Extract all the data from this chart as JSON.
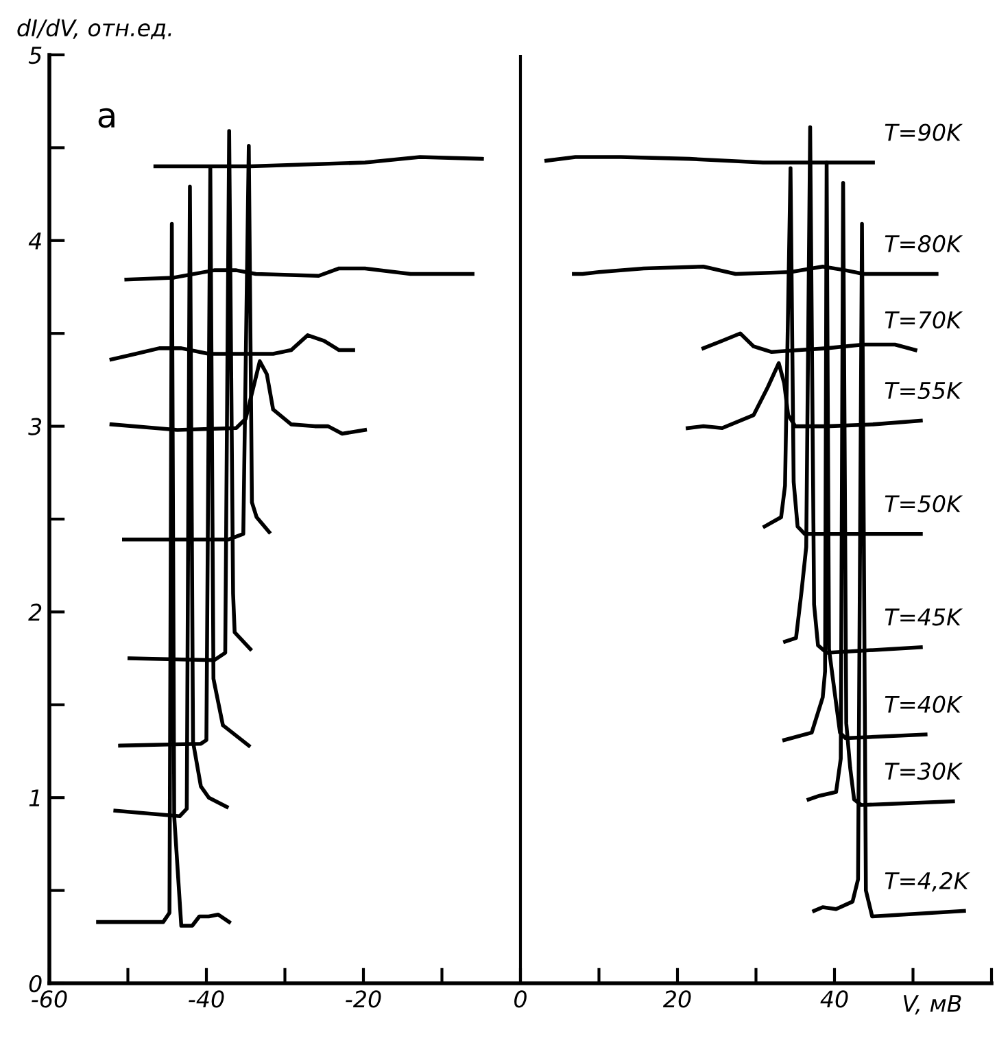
{
  "chart_data": {
    "type": "line",
    "xlabel": "V, мВ",
    "ylabel": "dI/dV, отн.ед.",
    "annotations": [
      "а"
    ],
    "xlim": [
      -60,
      60
    ],
    "ylim": [
      0,
      5
    ],
    "xticks": [
      -60,
      {
        "value": -50,
        "label": null
      },
      -40,
      {
        "value": -30,
        "label": null
      },
      -20,
      {
        "value": -10,
        "label": null
      },
      0,
      {
        "value": 10,
        "label": null
      },
      20,
      {
        "value": 30,
        "label": null
      },
      40,
      {
        "value": 50,
        "label": null
      },
      {
        "value": 60,
        "label": null
      }
    ],
    "yticks": [
      0,
      {
        "value": 0.5,
        "label": null
      },
      1,
      {
        "value": 1.5,
        "label": null
      },
      2,
      {
        "value": 2.5,
        "label": null
      },
      3,
      {
        "value": 3.5,
        "label": null
      },
      4,
      {
        "value": 4.5,
        "label": null
      },
      5
    ],
    "ref_lines": [
      {
        "axis": "x",
        "value": 0,
        "color": "#000000"
      }
    ],
    "grid": false,
    "legend": false,
    "marker": "none",
    "line_style": "solid",
    "series": [
      {
        "name": "T=90K",
        "color": "#000000",
        "x": [
          -46.5,
          -34.4,
          -19.8,
          -12.8,
          -4.9,
          0,
          3.3,
          7.0,
          12.8,
          21.5,
          30.9,
          44.9
        ],
        "values": [
          4.4,
          4.4,
          4.42,
          4.45,
          4.44,
          null,
          4.43,
          4.45,
          4.45,
          4.44,
          4.42,
          4.42
        ]
      },
      {
        "name": "T=80K",
        "color": "#000000",
        "x": [
          -50.2,
          -44.2,
          -39.0,
          -36.2,
          -33.7,
          -25.7,
          -23.1,
          -19.8,
          -14.0,
          -6.1,
          0,
          6.8,
          7.9,
          10.0,
          15.7,
          23.3,
          27.4,
          34.4,
          38.5,
          41.4,
          43.7,
          53.0
        ],
        "values": [
          3.79,
          3.8,
          3.84,
          3.84,
          3.82,
          3.81,
          3.85,
          3.85,
          3.82,
          3.82,
          null,
          3.82,
          3.82,
          3.83,
          3.85,
          3.86,
          3.82,
          3.83,
          3.86,
          3.84,
          3.82,
          3.82
        ]
      },
      {
        "name": "T=70K",
        "color": "#000000",
        "x": [
          -52.1,
          -49.0,
          -46.0,
          -43.2,
          -39.7,
          -35.5,
          -31.5,
          -29.2,
          -27.1,
          -25.0,
          -23.1,
          -21.3,
          0,
          23.3,
          25.7,
          28.0,
          29.7,
          32.0,
          35.5,
          39.0,
          43.7,
          47.7,
          50.3
        ],
        "values": [
          3.36,
          3.39,
          3.42,
          3.42,
          3.39,
          3.39,
          3.39,
          3.41,
          3.49,
          3.46,
          3.41,
          3.41,
          null,
          3.42,
          3.46,
          3.5,
          3.43,
          3.4,
          3.41,
          3.42,
          3.44,
          3.44,
          3.41
        ]
      },
      {
        "name": "T=55K",
        "color": "#000000",
        "x": [
          -52.1,
          -43.7,
          -36.2,
          -35.0,
          -33.2,
          -32.3,
          -31.5,
          -29.2,
          -26.2,
          -24.5,
          -22.7,
          -19.8,
          0,
          21.3,
          23.3,
          25.7,
          29.7,
          31.5,
          32.9,
          33.6,
          34.1,
          35.0,
          39.0,
          44.9,
          51.0
        ],
        "values": [
          3.01,
          2.98,
          2.99,
          3.04,
          3.35,
          3.28,
          3.09,
          3.01,
          3.0,
          3.0,
          2.96,
          2.98,
          null,
          2.99,
          3.0,
          2.99,
          3.06,
          3.21,
          3.34,
          3.23,
          3.06,
          3.0,
          3.0,
          3.01,
          3.03
        ]
      },
      {
        "name": "T=50K",
        "color": "#000000",
        "x": [
          -50.5,
          -37.2,
          -35.3,
          -34.6,
          -34.2,
          -33.6,
          -32.0,
          0,
          31.1,
          33.2,
          33.7,
          34.4,
          34.8,
          35.3,
          36.2,
          51.0
        ],
        "values": [
          2.39,
          2.39,
          2.42,
          4.51,
          2.59,
          2.51,
          2.43,
          null,
          2.46,
          2.51,
          2.68,
          4.39,
          2.7,
          2.46,
          2.42,
          2.42
        ]
      },
      {
        "name": "T=45K",
        "color": "#000000",
        "x": [
          -49.8,
          -39.0,
          -37.6,
          -37.1,
          -36.6,
          -36.4,
          -34.4,
          0,
          33.7,
          35.1,
          35.8,
          36.4,
          36.9,
          37.4,
          37.9,
          39.0,
          51.0
        ],
        "values": [
          1.75,
          1.74,
          1.78,
          4.59,
          2.1,
          1.89,
          1.8,
          null,
          1.84,
          1.86,
          2.11,
          2.35,
          4.61,
          2.04,
          1.82,
          1.78,
          1.81
        ]
      },
      {
        "name": "T=40K",
        "color": "#000000",
        "x": [
          -51.0,
          -40.7,
          -40.0,
          -39.5,
          -39.1,
          -37.9,
          -34.6,
          0,
          33.6,
          37.1,
          38.5,
          38.8,
          39.0,
          39.3,
          40.2,
          40.7,
          41.4,
          51.6
        ],
        "values": [
          1.28,
          1.29,
          1.31,
          4.39,
          1.64,
          1.39,
          1.28,
          null,
          1.31,
          1.35,
          1.54,
          1.68,
          4.42,
          1.8,
          1.51,
          1.35,
          1.32,
          1.34
        ]
      },
      {
        "name": "T=30K",
        "color": "#000000",
        "x": [
          -51.6,
          -43.4,
          -42.5,
          -42.1,
          -41.7,
          -40.7,
          -39.7,
          -37.4,
          0,
          36.7,
          38.1,
          40.2,
          40.8,
          41.1,
          41.5,
          42.0,
          42.5,
          43.4,
          55.1
        ],
        "values": [
          0.93,
          0.9,
          0.94,
          4.29,
          1.3,
          1.06,
          1.0,
          0.95,
          null,
          0.99,
          1.01,
          1.03,
          1.21,
          4.31,
          1.4,
          1.16,
          0.99,
          0.96,
          0.98
        ]
      },
      {
        "name": "T=4,2K",
        "color": "#000000",
        "x": [
          -53.8,
          -45.5,
          -44.7,
          -44.4,
          -44.1,
          -43.2,
          -41.8,
          -40.9,
          -39.7,
          -38.5,
          -37.1,
          0,
          37.4,
          38.5,
          40.2,
          42.3,
          43.0,
          43.5,
          44.0,
          44.8,
          56.5
        ],
        "values": [
          0.33,
          0.33,
          0.38,
          4.09,
          0.9,
          0.31,
          0.31,
          0.36,
          0.36,
          0.37,
          0.33,
          null,
          0.39,
          0.41,
          0.4,
          0.44,
          0.56,
          4.09,
          0.5,
          0.36,
          0.39
        ]
      }
    ]
  }
}
